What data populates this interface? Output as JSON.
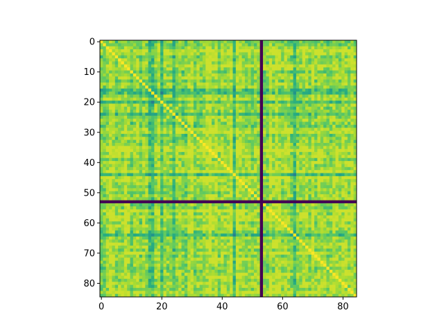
{
  "chart_data": {
    "type": "heatmap",
    "title": "",
    "xlabel": "",
    "ylabel": "",
    "n_rows": 85,
    "n_cols": 85,
    "colormap": "viridis",
    "value_range": [
      0,
      1
    ],
    "diagonal_value": 1.0,
    "masked_index": 53,
    "masked_value": 0.0,
    "xlim": [
      -0.5,
      84.5
    ],
    "ylim": [
      84.5,
      -0.5
    ],
    "x_ticks": [
      0,
      20,
      40,
      60,
      80
    ],
    "x_tick_labels": [
      "0",
      "20",
      "40",
      "60",
      "80"
    ],
    "y_ticks": [
      0,
      10,
      20,
      30,
      40,
      50,
      60,
      70,
      80
    ],
    "y_tick_labels": [
      "0",
      "10",
      "20",
      "30",
      "40",
      "50",
      "60",
      "70",
      "80"
    ],
    "dark_band_indices": [
      16,
      17,
      20,
      24,
      44,
      64
    ],
    "bright_band_indices": [
      3,
      8,
      30,
      36,
      38,
      43,
      45,
      56,
      58,
      70,
      83
    ],
    "grid": false,
    "legend": "none"
  }
}
